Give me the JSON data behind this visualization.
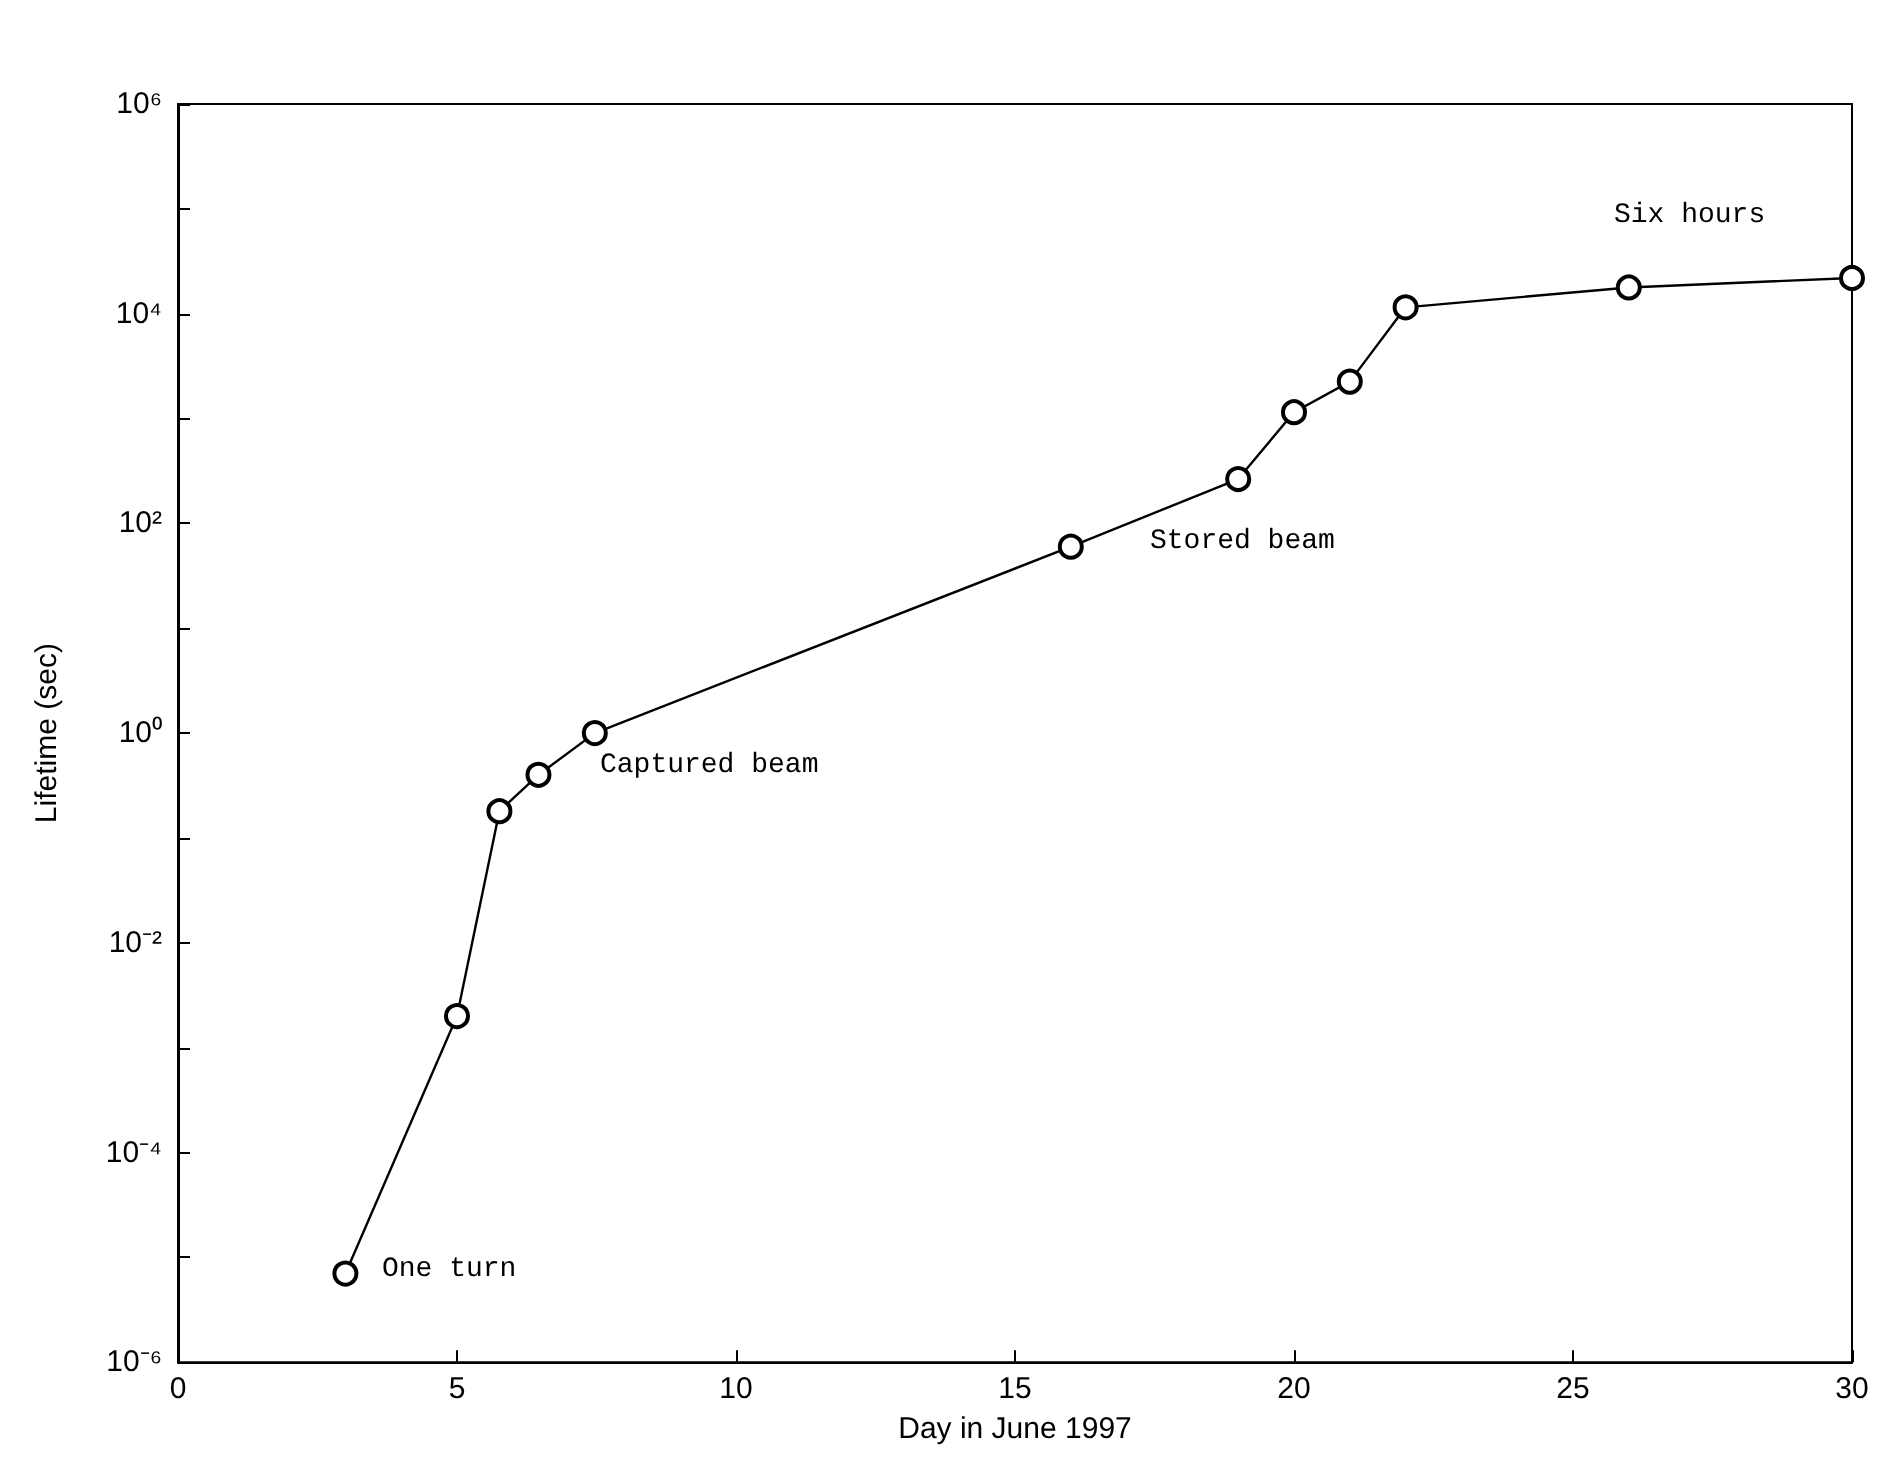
{
  "chart_data": {
    "type": "line",
    "xlabel": "Day in June 1997",
    "ylabel": "Lifetime (sec)",
    "log": "y",
    "marker": "circle",
    "line_style": "solid",
    "grid": false,
    "x": [
      3,
      5,
      5.76,
      6.46,
      7.47,
      16,
      19,
      20,
      21,
      22,
      26,
      30
    ],
    "series": [
      {
        "color": "#000000",
        "values": [
          7e-06,
          0.002,
          0.18,
          0.4,
          1.0,
          60,
          265,
          1150,
          2250,
          11500,
          17800,
          21900
        ]
      }
    ],
    "xlim": [
      0,
      30
    ],
    "xticks": [
      0,
      5,
      10,
      15,
      20,
      25,
      30
    ],
    "ylim": [
      1e-06,
      1000000.0
    ],
    "yticks": [
      {
        "value": 1e-06,
        "label": "10⁻⁶"
      },
      {
        "value": 1e-05,
        "label": null
      },
      {
        "value": 0.0001,
        "label": "10⁻⁴"
      },
      {
        "value": 0.001,
        "label": null
      },
      {
        "value": 0.01,
        "label": "10⁻²"
      },
      {
        "value": 0.1,
        "label": null
      },
      {
        "value": 1,
        "label": "10⁰"
      },
      {
        "value": 10,
        "label": null
      },
      {
        "value": 100,
        "label": "10²"
      },
      {
        "value": 1000,
        "label": null
      },
      {
        "value": 10000,
        "label": "10⁴"
      },
      {
        "value": 100000,
        "label": null
      },
      {
        "value": 1000000,
        "label": "10⁶"
      }
    ],
    "annotations": [
      "One turn",
      "Captured beam",
      "Stored beam",
      "Six hours"
    ]
  }
}
